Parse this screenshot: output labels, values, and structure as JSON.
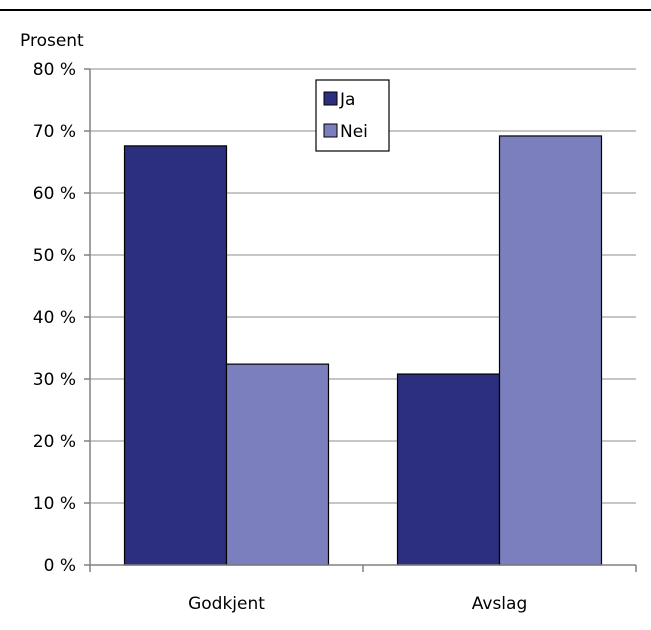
{
  "chart_data": {
    "type": "bar",
    "ylabel": "Prosent",
    "xlabel": "",
    "categories": [
      "Godkjent",
      "Avslag"
    ],
    "series": [
      {
        "name": "Ja",
        "values": [
          67.6,
          30.8
        ],
        "color": "#2b2f7d"
      },
      {
        "name": "Nei",
        "values": [
          32.4,
          69.2
        ],
        "color": "#7b7fbd"
      }
    ],
    "ylim": [
      0,
      80
    ],
    "yticks": [
      "0 %",
      "10 %",
      "20 %",
      "30 %",
      "40 %",
      "50 %",
      "60 %",
      "70 %",
      "80 %"
    ],
    "grid": true,
    "legend_position": "top-center"
  }
}
